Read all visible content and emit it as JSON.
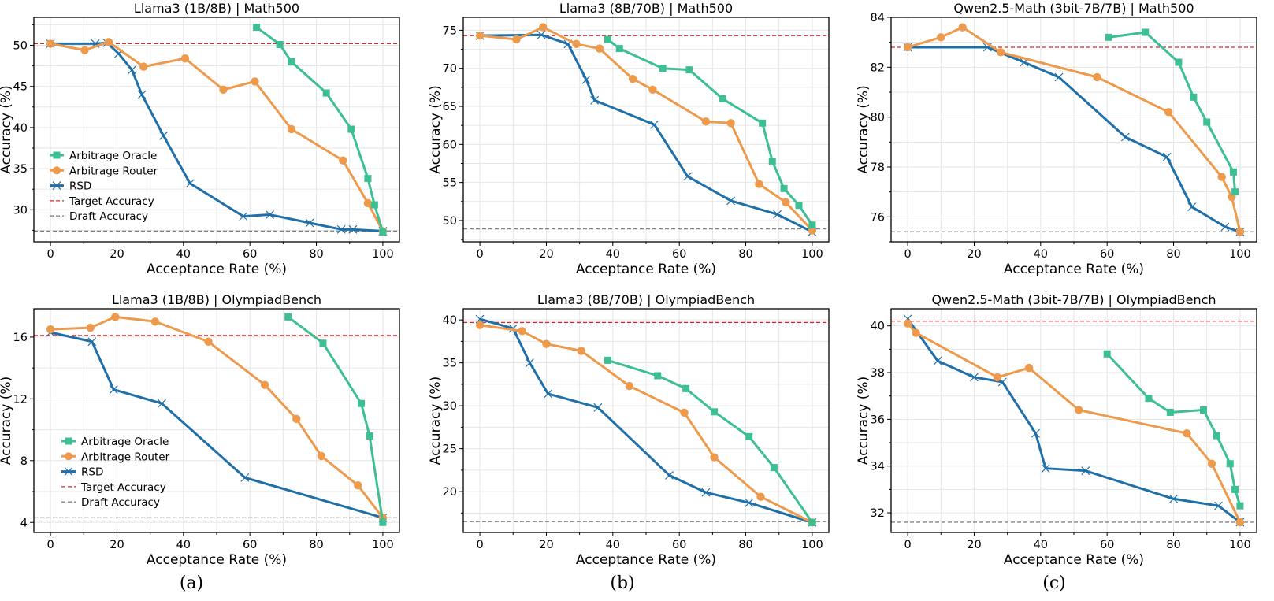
{
  "legend": {
    "oracle": "Arbitrage Oracle",
    "router": "Arbitrage Router",
    "rsd": "RSD",
    "target": "Target Accuracy",
    "draft": "Draft Accuracy"
  },
  "colors": {
    "oracle": "#3dbf94",
    "router": "#ee9a4d",
    "rsd": "#1f6fa8",
    "target": "#d62728",
    "draft": "#808080"
  },
  "captions": [
    "(a)",
    "(b)",
    "(c)"
  ],
  "chart_data": [
    {
      "type": "line",
      "title": "Llama3 (1B/8B) | Math500",
      "xlabel": "Acceptance Rate (%)",
      "ylabel": "Accuracy (%)",
      "xlim": [
        -5,
        105
      ],
      "ylim": [
        26.1,
        53.4
      ],
      "xticks": [
        0,
        20,
        40,
        60,
        80,
        100
      ],
      "yticks": [
        30,
        35,
        40,
        45,
        50
      ],
      "grid": true,
      "legend": "lower-left",
      "target_accuracy": 50.2,
      "draft_accuracy": 27.4,
      "series": [
        {
          "name": "Arbitrage Oracle",
          "points": [
            [
              62,
              52.2
            ],
            [
              69,
              50.1
            ],
            [
              72.5,
              48
            ],
            [
              83,
              44.2
            ],
            [
              90.5,
              39.8
            ],
            [
              95.5,
              33.8
            ],
            [
              97.5,
              30.6
            ],
            [
              100,
              27.3
            ]
          ]
        },
        {
          "name": "Arbitrage Router",
          "points": [
            [
              0,
              50.2
            ],
            [
              10.3,
              49.4
            ],
            [
              17.5,
              50.4
            ],
            [
              28,
              47.4
            ],
            [
              40.5,
              48.4
            ],
            [
              52,
              44.6
            ],
            [
              61.5,
              45.6
            ],
            [
              72.5,
              39.8
            ],
            [
              88,
              36
            ],
            [
              95.5,
              30.8
            ],
            [
              100,
              27.4
            ]
          ]
        },
        {
          "name": "RSD",
          "points": [
            [
              0,
              50.2
            ],
            [
              13.5,
              50.2
            ],
            [
              17,
              50.3
            ],
            [
              20.5,
              49
            ],
            [
              24.5,
              47
            ],
            [
              27.5,
              44
            ],
            [
              34,
              39
            ],
            [
              42,
              33.2
            ],
            [
              58,
              29.2
            ],
            [
              66,
              29.4
            ],
            [
              78,
              28.4
            ],
            [
              87.5,
              27.6
            ],
            [
              91,
              27.6
            ],
            [
              100,
              27.4
            ]
          ]
        }
      ]
    },
    {
      "type": "line",
      "title": "Llama3 (8B/70B) | Math500",
      "xlabel": "Acceptance Rate (%)",
      "ylabel": "Accuracy (%)",
      "xlim": [
        -5,
        105
      ],
      "ylim": [
        47.2,
        76.7
      ],
      "xticks": [
        0,
        20,
        40,
        60,
        80,
        100
      ],
      "yticks": [
        50,
        55,
        60,
        65,
        70,
        75
      ],
      "grid": true,
      "target_accuracy": 74.3,
      "draft_accuracy": 48.9,
      "series": [
        {
          "name": "Arbitrage Oracle",
          "points": [
            [
              38.5,
              73.8
            ],
            [
              42,
              72.6
            ],
            [
              55,
              70
            ],
            [
              63,
              69.8
            ],
            [
              73,
              66
            ],
            [
              85,
              62.8
            ],
            [
              88,
              57.8
            ],
            [
              91.5,
              54.2
            ],
            [
              96,
              52
            ],
            [
              100,
              49.4
            ]
          ]
        },
        {
          "name": "Arbitrage Router",
          "points": [
            [
              0,
              74.3
            ],
            [
              11,
              73.8
            ],
            [
              19,
              75.4
            ],
            [
              29,
              73.2
            ],
            [
              36,
              72.6
            ],
            [
              46,
              68.6
            ],
            [
              52,
              67.2
            ],
            [
              68,
              63
            ],
            [
              75.5,
              62.8
            ],
            [
              84,
              54.8
            ],
            [
              92,
              52.4
            ],
            [
              100,
              48.7
            ]
          ]
        },
        {
          "name": "RSD",
          "points": [
            [
              0,
              74.3
            ],
            [
              18.5,
              74.4
            ],
            [
              26.5,
              73.2
            ],
            [
              32,
              68.5
            ],
            [
              34.5,
              65.8
            ],
            [
              52.5,
              62.6
            ],
            [
              62.5,
              55.8
            ],
            [
              75.5,
              52.6
            ],
            [
              89.5,
              50.8
            ],
            [
              100,
              48.5
            ]
          ]
        }
      ]
    },
    {
      "type": "line",
      "title": "Qwen2.5-Math (3bit-7B/7B) | Math500",
      "xlabel": "Acceptance Rate (%)",
      "ylabel": "Accuracy (%)",
      "xlim": [
        -5,
        105
      ],
      "ylim": [
        75.0,
        84.0
      ],
      "xticks": [
        0,
        20,
        40,
        60,
        80,
        100
      ],
      "yticks": [
        76,
        78,
        80,
        82,
        84
      ],
      "grid": true,
      "target_accuracy": 82.8,
      "draft_accuracy": 75.4,
      "series": [
        {
          "name": "Arbitrage Oracle",
          "points": [
            [
              60.5,
              83.2
            ],
            [
              71.5,
              83.4
            ],
            [
              81.5,
              82.2
            ],
            [
              86,
              80.8
            ],
            [
              90,
              79.8
            ],
            [
              98,
              77.8
            ],
            [
              98.5,
              77.0
            ]
          ]
        },
        {
          "name": "Arbitrage Router",
          "points": [
            [
              0,
              82.8
            ],
            [
              10,
              83.2
            ],
            [
              16.5,
              83.6
            ],
            [
              28,
              82.6
            ],
            [
              57,
              81.6
            ],
            [
              78.5,
              80.2
            ],
            [
              94.5,
              77.6
            ],
            [
              97.5,
              76.8
            ],
            [
              100,
              75.4
            ]
          ]
        },
        {
          "name": "RSD",
          "points": [
            [
              0,
              82.8
            ],
            [
              24,
              82.8
            ],
            [
              35,
              82.2
            ],
            [
              45.5,
              81.6
            ],
            [
              65.5,
              79.2
            ],
            [
              78,
              78.4
            ],
            [
              85.5,
              76.4
            ],
            [
              95.5,
              75.6
            ],
            [
              100,
              75.4
            ]
          ]
        }
      ]
    },
    {
      "type": "line",
      "title": "Llama3 (1B/8B) | OlympiadBench",
      "xlabel": "Acceptance Rate (%)",
      "ylabel": "Accuracy (%)",
      "xlim": [
        -5,
        105
      ],
      "ylim": [
        3.35,
        17.83
      ],
      "xticks": [
        0,
        20,
        40,
        60,
        80,
        100
      ],
      "yticks": [
        4,
        8,
        12,
        16
      ],
      "grid": true,
      "legend": "lower-left",
      "target_accuracy": 16.1,
      "draft_accuracy": 4.3,
      "series": [
        {
          "name": "Arbitrage Oracle",
          "points": [
            [
              71.5,
              17.3
            ],
            [
              82,
              15.6
            ],
            [
              93.5,
              11.7
            ],
            [
              96,
              9.6
            ],
            [
              100,
              4.0
            ]
          ]
        },
        {
          "name": "Arbitrage Router",
          "points": [
            [
              0,
              16.5
            ],
            [
              12,
              16.6
            ],
            [
              19.5,
              17.3
            ],
            [
              31.5,
              17.0
            ],
            [
              47.5,
              15.7
            ],
            [
              64.5,
              12.9
            ],
            [
              74,
              10.7
            ],
            [
              81.5,
              8.3
            ],
            [
              92.5,
              6.4
            ],
            [
              100,
              4.3
            ]
          ]
        },
        {
          "name": "RSD",
          "points": [
            [
              0,
              16.3
            ],
            [
              12.5,
              15.7
            ],
            [
              19,
              12.6
            ],
            [
              33.5,
              11.7
            ],
            [
              58.5,
              6.9
            ],
            [
              100,
              4.3
            ]
          ]
        }
      ]
    },
    {
      "type": "line",
      "title": "Llama3 (8B/70B) | OlympiadBench",
      "xlabel": "Acceptance Rate (%)",
      "ylabel": "Accuracy (%)",
      "xlim": [
        -5,
        105
      ],
      "ylim": [
        15.24,
        41.3
      ],
      "xticks": [
        0,
        20,
        40,
        60,
        80,
        100
      ],
      "yticks": [
        20,
        25,
        30,
        35,
        40
      ],
      "grid": true,
      "target_accuracy": 39.7,
      "draft_accuracy": 16.5,
      "series": [
        {
          "name": "Arbitrage Oracle",
          "points": [
            [
              38.5,
              35.3
            ],
            [
              53.5,
              33.5
            ],
            [
              62,
              32
            ],
            [
              70.5,
              29.3
            ],
            [
              81,
              26.4
            ],
            [
              88.5,
              22.8
            ],
            [
              100,
              16.4
            ]
          ]
        },
        {
          "name": "Arbitrage Router",
          "points": [
            [
              0,
              39.4
            ],
            [
              12.7,
              38.7
            ],
            [
              20,
              37.2
            ],
            [
              30.5,
              36.4
            ],
            [
              45,
              32.3
            ],
            [
              61.5,
              29.2
            ],
            [
              70.5,
              24
            ],
            [
              84.5,
              19.4
            ],
            [
              100,
              16.4
            ]
          ]
        },
        {
          "name": "RSD",
          "points": [
            [
              0,
              40.1
            ],
            [
              10,
              39
            ],
            [
              15,
              35
            ],
            [
              20.5,
              31.4
            ],
            [
              35.5,
              29.8
            ],
            [
              57,
              21.9
            ],
            [
              68,
              19.9
            ],
            [
              81,
              18.7
            ],
            [
              100,
              16.4
            ]
          ]
        }
      ]
    },
    {
      "type": "line",
      "title": "Qwen2.5-Math (3bit-7B/7B) | OlympiadBench",
      "xlabel": "Acceptance Rate (%)",
      "ylabel": "Accuracy (%)",
      "xlim": [
        -5,
        105
      ],
      "ylim": [
        31.16,
        40.73
      ],
      "xticks": [
        0,
        20,
        40,
        60,
        80,
        100
      ],
      "yticks": [
        32,
        34,
        36,
        38,
        40
      ],
      "grid": true,
      "target_accuracy": 40.2,
      "draft_accuracy": 31.6,
      "series": [
        {
          "name": "Arbitrage Oracle",
          "points": [
            [
              60,
              38.8
            ],
            [
              72.5,
              36.9
            ],
            [
              79,
              36.3
            ],
            [
              89,
              36.4
            ],
            [
              93,
              35.3
            ],
            [
              97,
              34.1
            ],
            [
              98.5,
              33
            ],
            [
              100,
              32.3
            ]
          ]
        },
        {
          "name": "Arbitrage Router",
          "points": [
            [
              0,
              40.1
            ],
            [
              2.5,
              39.7
            ],
            [
              27,
              37.8
            ],
            [
              36.5,
              38.2
            ],
            [
              51.5,
              36.4
            ],
            [
              84,
              35.4
            ],
            [
              91.5,
              34.1
            ],
            [
              100,
              31.6
            ]
          ]
        },
        {
          "name": "RSD",
          "points": [
            [
              0,
              40.3
            ],
            [
              9,
              38.5
            ],
            [
              20,
              37.8
            ],
            [
              28.5,
              37.6
            ],
            [
              38.5,
              35.4
            ],
            [
              41.5,
              33.9
            ],
            [
              53.5,
              33.8
            ],
            [
              80,
              32.6
            ],
            [
              93.5,
              32.3
            ],
            [
              100,
              31.6
            ]
          ]
        }
      ]
    }
  ]
}
